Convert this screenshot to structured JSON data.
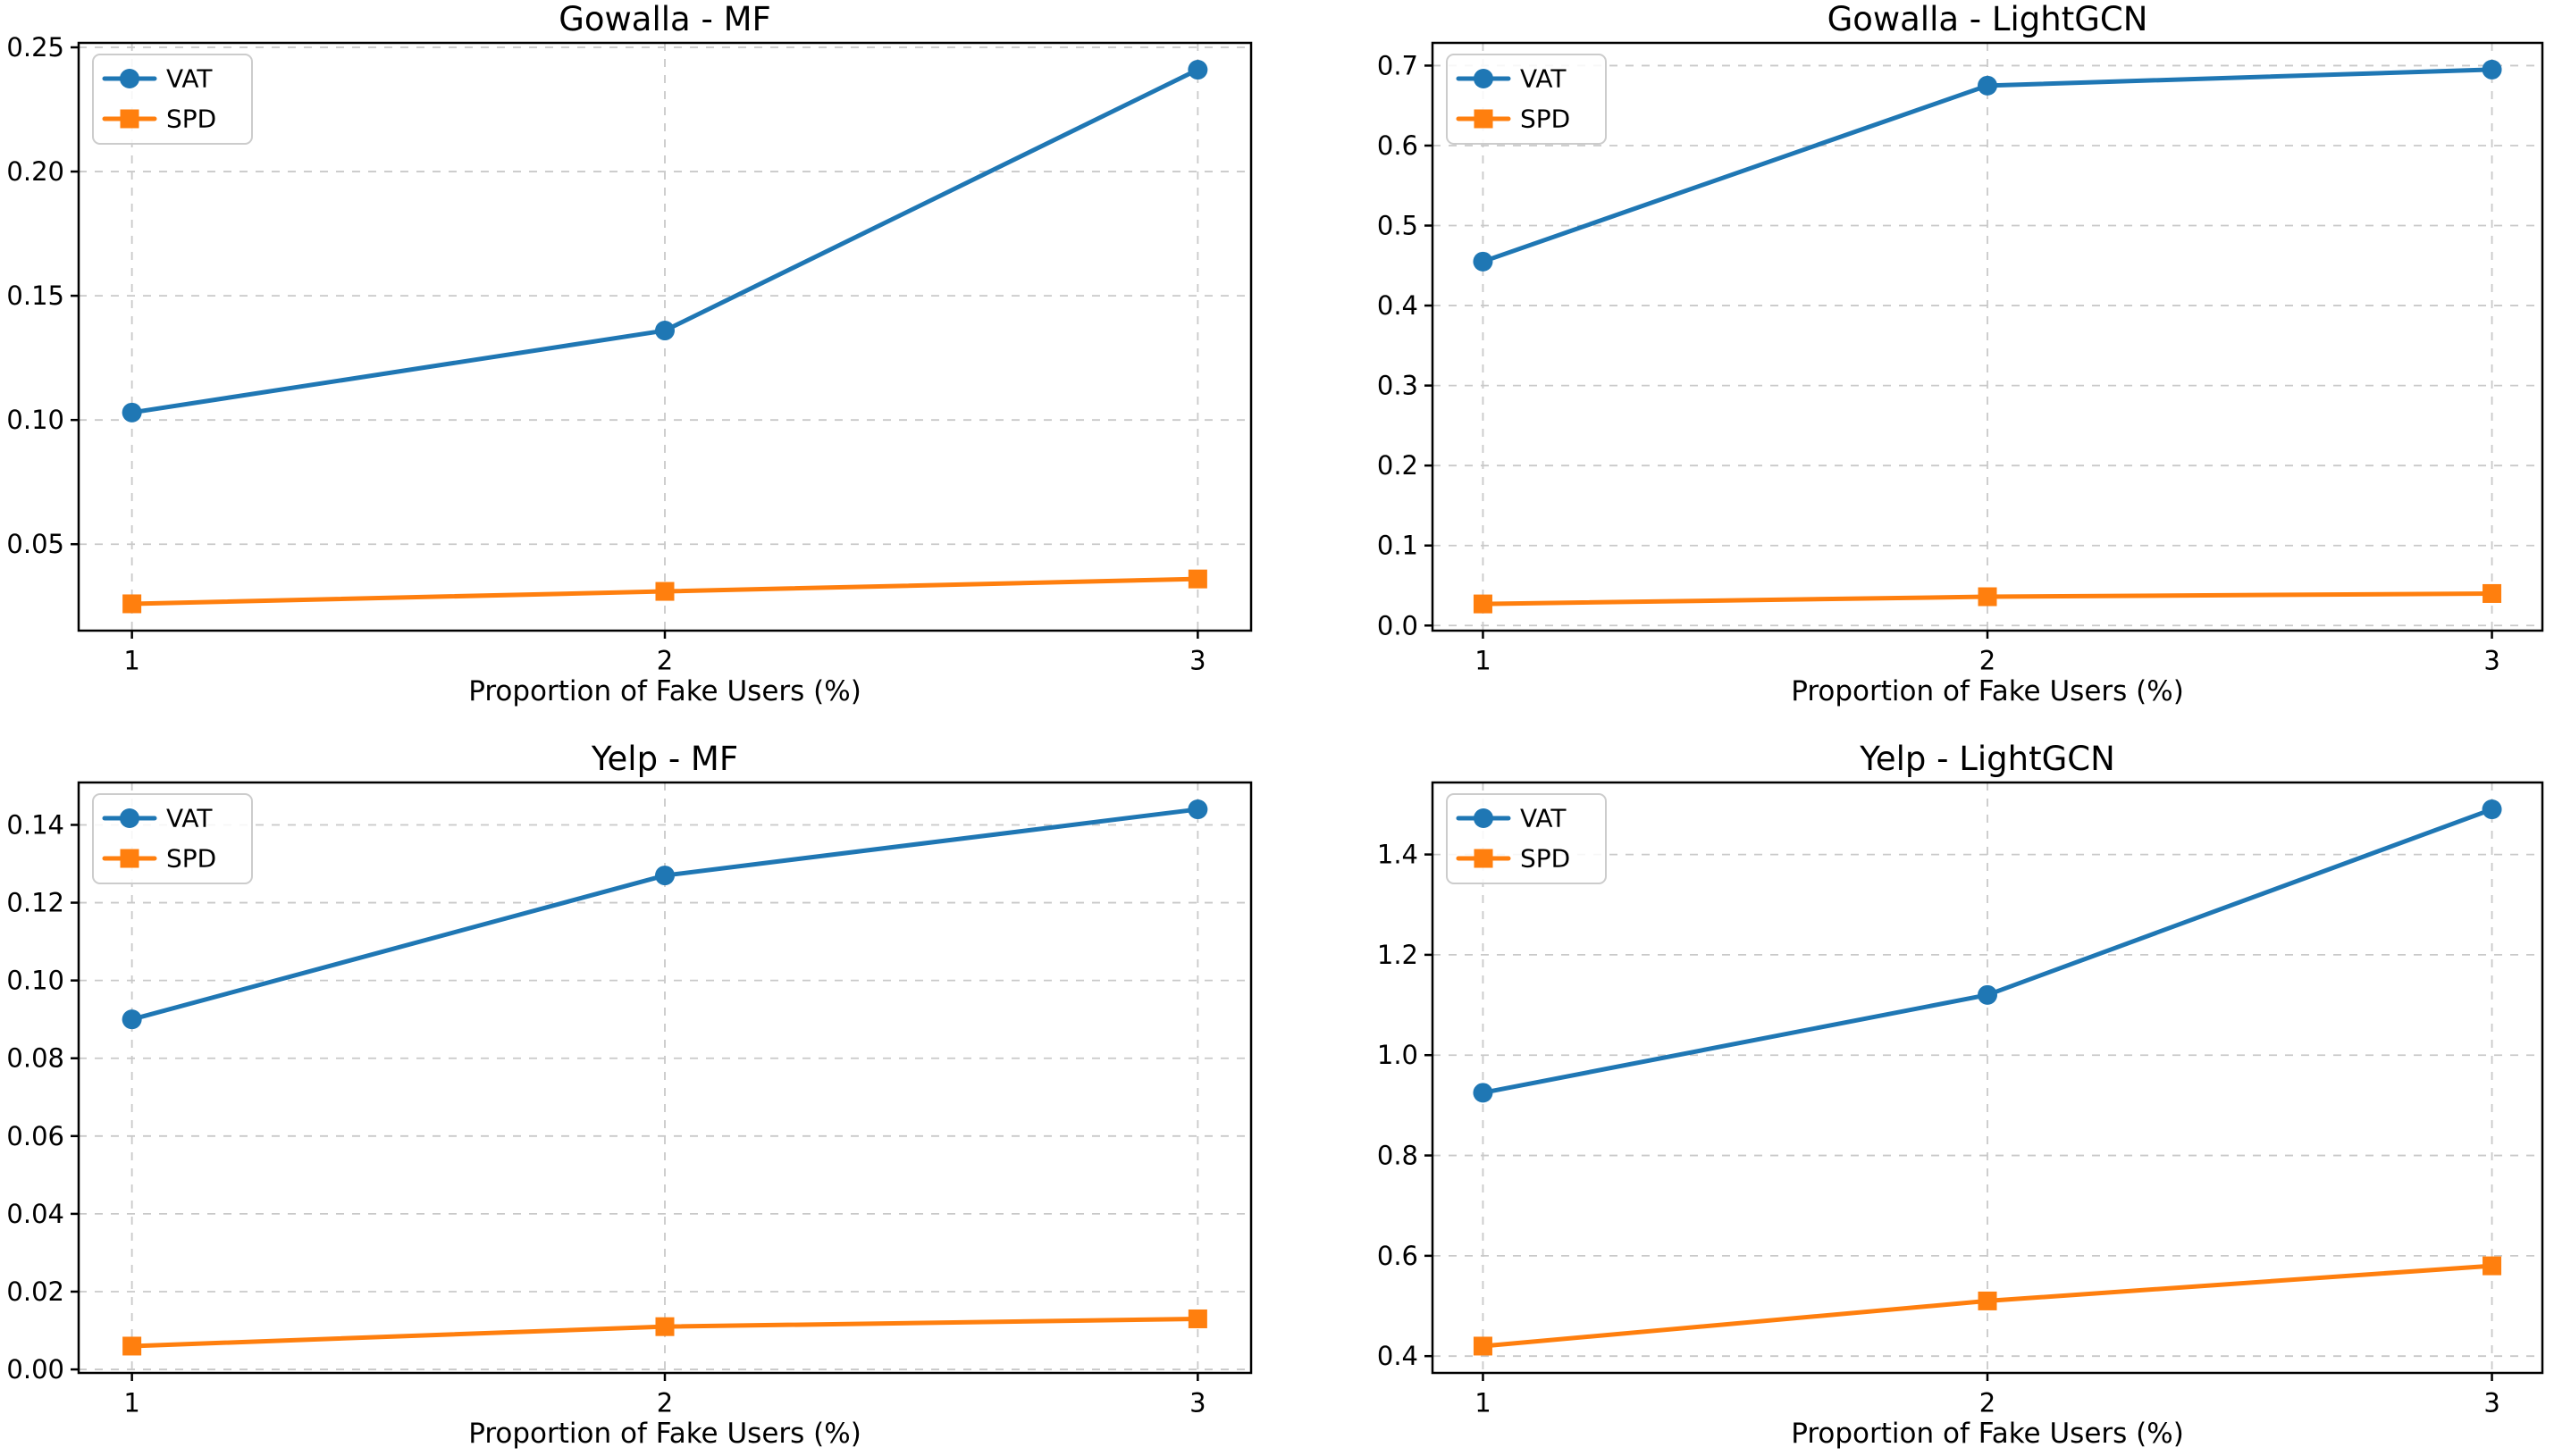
{
  "figure": {
    "background": "#ffffff",
    "x_axis_label": "Proportion of Fake Users (%)",
    "legend_labels": [
      "VAT",
      "SPD"
    ],
    "series_colors": {
      "VAT": "#1f77b4",
      "SPD": "#ff7f0e"
    },
    "grid_color": "#c9c9c9"
  },
  "chart_data": [
    {
      "type": "line",
      "title": "Gowalla - MF",
      "xlabel": "Proportion of Fake Users (%)",
      "x": [
        1,
        2,
        3
      ],
      "xtick_labels": [
        "1",
        "2",
        "3"
      ],
      "xlim": [
        0.9,
        3.1
      ],
      "ylim": [
        0.0152,
        0.2518
      ],
      "yticks": [
        0.05,
        0.1,
        0.15,
        0.2,
        0.25
      ],
      "ytick_labels": [
        "0.05",
        "0.10",
        "0.15",
        "0.20",
        "0.25"
      ],
      "grid": true,
      "legend_position": "upper left",
      "series": [
        {
          "name": "VAT",
          "marker": "circle",
          "color": "#1f77b4",
          "values": [
            0.103,
            0.136,
            0.241
          ]
        },
        {
          "name": "SPD",
          "marker": "square",
          "color": "#ff7f0e",
          "values": [
            0.026,
            0.031,
            0.036
          ]
        }
      ]
    },
    {
      "type": "line",
      "title": "Gowalla - LightGCN",
      "xlabel": "Proportion of Fake Users (%)",
      "x": [
        1,
        2,
        3
      ],
      "xtick_labels": [
        "1",
        "2",
        "3"
      ],
      "xlim": [
        0.9,
        3.1
      ],
      "ylim": [
        -0.0064,
        0.7284
      ],
      "yticks": [
        0.0,
        0.1,
        0.2,
        0.3,
        0.4,
        0.5,
        0.6,
        0.7
      ],
      "ytick_labels": [
        "0.0",
        "0.1",
        "0.2",
        "0.3",
        "0.4",
        "0.5",
        "0.6",
        "0.7"
      ],
      "grid": true,
      "legend_position": "upper left",
      "series": [
        {
          "name": "VAT",
          "marker": "circle",
          "color": "#1f77b4",
          "values": [
            0.455,
            0.675,
            0.695
          ]
        },
        {
          "name": "SPD",
          "marker": "square",
          "color": "#ff7f0e",
          "values": [
            0.027,
            0.036,
            0.04
          ]
        }
      ]
    },
    {
      "type": "line",
      "title": "Yelp - MF",
      "xlabel": "Proportion of Fake Users (%)",
      "x": [
        1,
        2,
        3
      ],
      "xtick_labels": [
        "1",
        "2",
        "3"
      ],
      "xlim": [
        0.9,
        3.1
      ],
      "ylim": [
        -0.0009,
        0.1509
      ],
      "yticks": [
        0.0,
        0.02,
        0.04,
        0.06,
        0.08,
        0.1,
        0.12,
        0.14
      ],
      "ytick_labels": [
        "0.00",
        "0.02",
        "0.04",
        "0.06",
        "0.08",
        "0.10",
        "0.12",
        "0.14"
      ],
      "grid": true,
      "legend_position": "upper left",
      "series": [
        {
          "name": "VAT",
          "marker": "circle",
          "color": "#1f77b4",
          "values": [
            0.09,
            0.127,
            0.144
          ]
        },
        {
          "name": "SPD",
          "marker": "square",
          "color": "#ff7f0e",
          "values": [
            0.006,
            0.011,
            0.013
          ]
        }
      ]
    },
    {
      "type": "line",
      "title": "Yelp - LightGCN",
      "xlabel": "Proportion of Fake Users (%)",
      "x": [
        1,
        2,
        3
      ],
      "xtick_labels": [
        "1",
        "2",
        "3"
      ],
      "xlim": [
        0.9,
        3.1
      ],
      "ylim": [
        0.3665,
        1.5435
      ],
      "yticks": [
        0.4,
        0.6,
        0.8,
        1.0,
        1.2,
        1.4
      ],
      "ytick_labels": [
        "0.4",
        "0.6",
        "0.8",
        "1.0",
        "1.2",
        "1.4"
      ],
      "grid": true,
      "legend_position": "upper left",
      "series": [
        {
          "name": "VAT",
          "marker": "circle",
          "color": "#1f77b4",
          "values": [
            0.925,
            1.12,
            1.49
          ]
        },
        {
          "name": "SPD",
          "marker": "square",
          "color": "#ff7f0e",
          "values": [
            0.42,
            0.51,
            0.58
          ]
        }
      ]
    }
  ]
}
